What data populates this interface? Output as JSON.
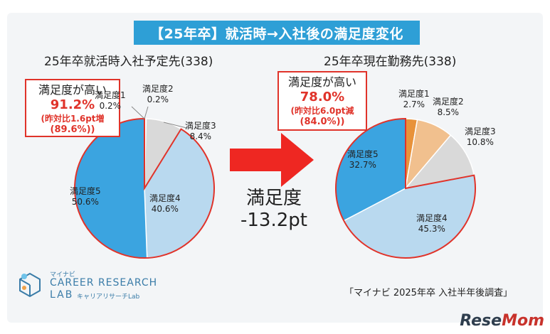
{
  "banner": {
    "title": "【25年卒】就活時→入社後の満足度変化"
  },
  "arrow": {
    "label_line1": "満足度",
    "label_line2": "-13.2pt"
  },
  "source": "「マイナビ 2025年卒 入社半年後調査」",
  "logo": {
    "brand_small": "マイナビ",
    "line1": "CAREER RESEARCH",
    "line2": "LAB",
    "line2_sub": "キャリアリサーチLab"
  },
  "watermark": {
    "part1": "Rese",
    "part2": "Mom"
  },
  "colors": {
    "s5": "#3ba4e0",
    "s4": "#b9d9ef",
    "s3": "#d9d9d9",
    "s2_left": "#d9d9d9",
    "s1_left": "#d9d9d9",
    "s2_right": "#f1c08e",
    "s1_right": "#e8923a",
    "accent_red": "#e0332a",
    "banner": "#2e9fd6"
  },
  "chart_data": [
    {
      "type": "pie",
      "title": "25年卒就活時入社予定先(338)",
      "slices": [
        {
          "label": "満足度5",
          "value": 50.6
        },
        {
          "label": "満足度4",
          "value": 40.6
        },
        {
          "label": "満足度3",
          "value": 8.4
        },
        {
          "label": "満足度2",
          "value": 0.2
        },
        {
          "label": "満足度1",
          "value": 0.2
        }
      ],
      "callout": {
        "title": "満足度が高い",
        "value": "91.2%",
        "note1": "(昨対比1.6pt増",
        "note2": "(89.6%))"
      }
    },
    {
      "type": "pie",
      "title": "25年卒現在勤務先(338)",
      "slices": [
        {
          "label": "満足度5",
          "value": 32.7
        },
        {
          "label": "満足度4",
          "value": 45.3
        },
        {
          "label": "満足度3",
          "value": 10.8
        },
        {
          "label": "満足度2",
          "value": 8.5
        },
        {
          "label": "満足度1",
          "value": 2.7
        }
      ],
      "callout": {
        "title": "満足度が高い",
        "value": "78.0%",
        "note1": "(昨対比6.0pt減",
        "note2": "(84.0%))"
      }
    }
  ]
}
